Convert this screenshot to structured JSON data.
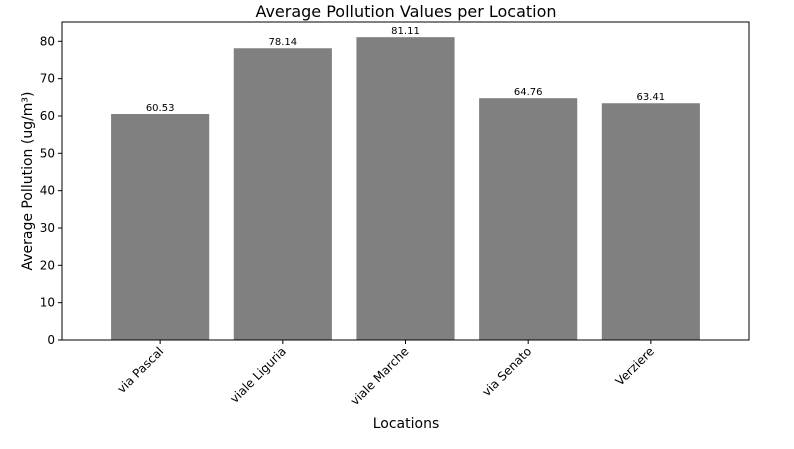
{
  "chart_data": {
    "type": "bar",
    "title": "Average Pollution Values per Location",
    "xlabel": "Locations",
    "ylabel": "Average Pollution (ug/m³)",
    "categories": [
      "via Pascal",
      "viale Liguria",
      "viale Marche",
      "via Senato",
      "Verziere"
    ],
    "values": [
      60.53,
      78.14,
      81.11,
      64.76,
      63.41
    ],
    "value_labels": [
      "60.53",
      "78.14",
      "81.11",
      "64.76",
      "63.41"
    ],
    "ylim": [
      0,
      85.17
    ],
    "yticks": [
      0,
      10,
      20,
      30,
      40,
      50,
      60,
      70,
      80
    ],
    "bar_color": "#808080",
    "grid": false,
    "legend": "none"
  }
}
